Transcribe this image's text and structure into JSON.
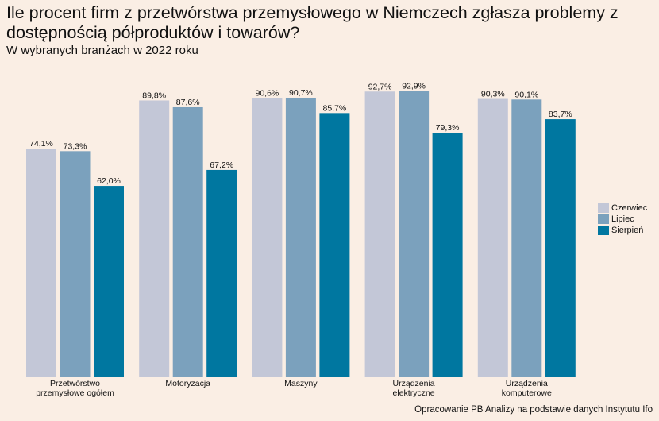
{
  "title": "Ile procent firm z przetwórstwa przemysłowego w Niemczech zgłasza problemy z dostępnością półproduktów i towarów?",
  "subtitle": "W wybranych branżach w 2022 roku",
  "source": "Opracowanie PB Analizy na podstawie danych Instytutu Ifo",
  "colors": {
    "Czerwiec": "#c3c7d7",
    "Lipiec": "#7ba1bd",
    "Sierpień": "#0077a0",
    "background": "#faeee4"
  },
  "chart_data": {
    "type": "bar",
    "title": "Ile procent firm z przetwórstwa przemysłowego w Niemczech zgłasza problemy z dostępnością półproduktów i towarów?",
    "subtitle": "W wybranych branżach w 2022 roku",
    "categories": [
      [
        "Przetwórstwo",
        "przemysłowe ogółem"
      ],
      [
        "Motoryzacja"
      ],
      [
        "Maszyny"
      ],
      [
        "Urządzenia",
        "elektryczne"
      ],
      [
        "Urządzenia",
        "komputerowe"
      ]
    ],
    "series": [
      {
        "name": "Czerwiec",
        "values": [
          74.1,
          89.8,
          90.6,
          92.7,
          90.3
        ],
        "labels": [
          "74,1%",
          "89,8%",
          "90,6%",
          "92,7%",
          "90,3%"
        ]
      },
      {
        "name": "Lipiec",
        "values": [
          73.3,
          87.6,
          90.7,
          92.9,
          90.1
        ],
        "labels": [
          "73,3%",
          "87,6%",
          "90,7%",
          "92,9%",
          "90,1%"
        ]
      },
      {
        "name": "Sierpień",
        "values": [
          62.0,
          67.2,
          85.7,
          79.3,
          83.7
        ],
        "labels": [
          "62,0%",
          "67,2%",
          "85,7%",
          "79,3%",
          "83,7%"
        ]
      }
    ],
    "ylim": [
      0,
      100
    ],
    "grid": false,
    "legend": "right"
  }
}
